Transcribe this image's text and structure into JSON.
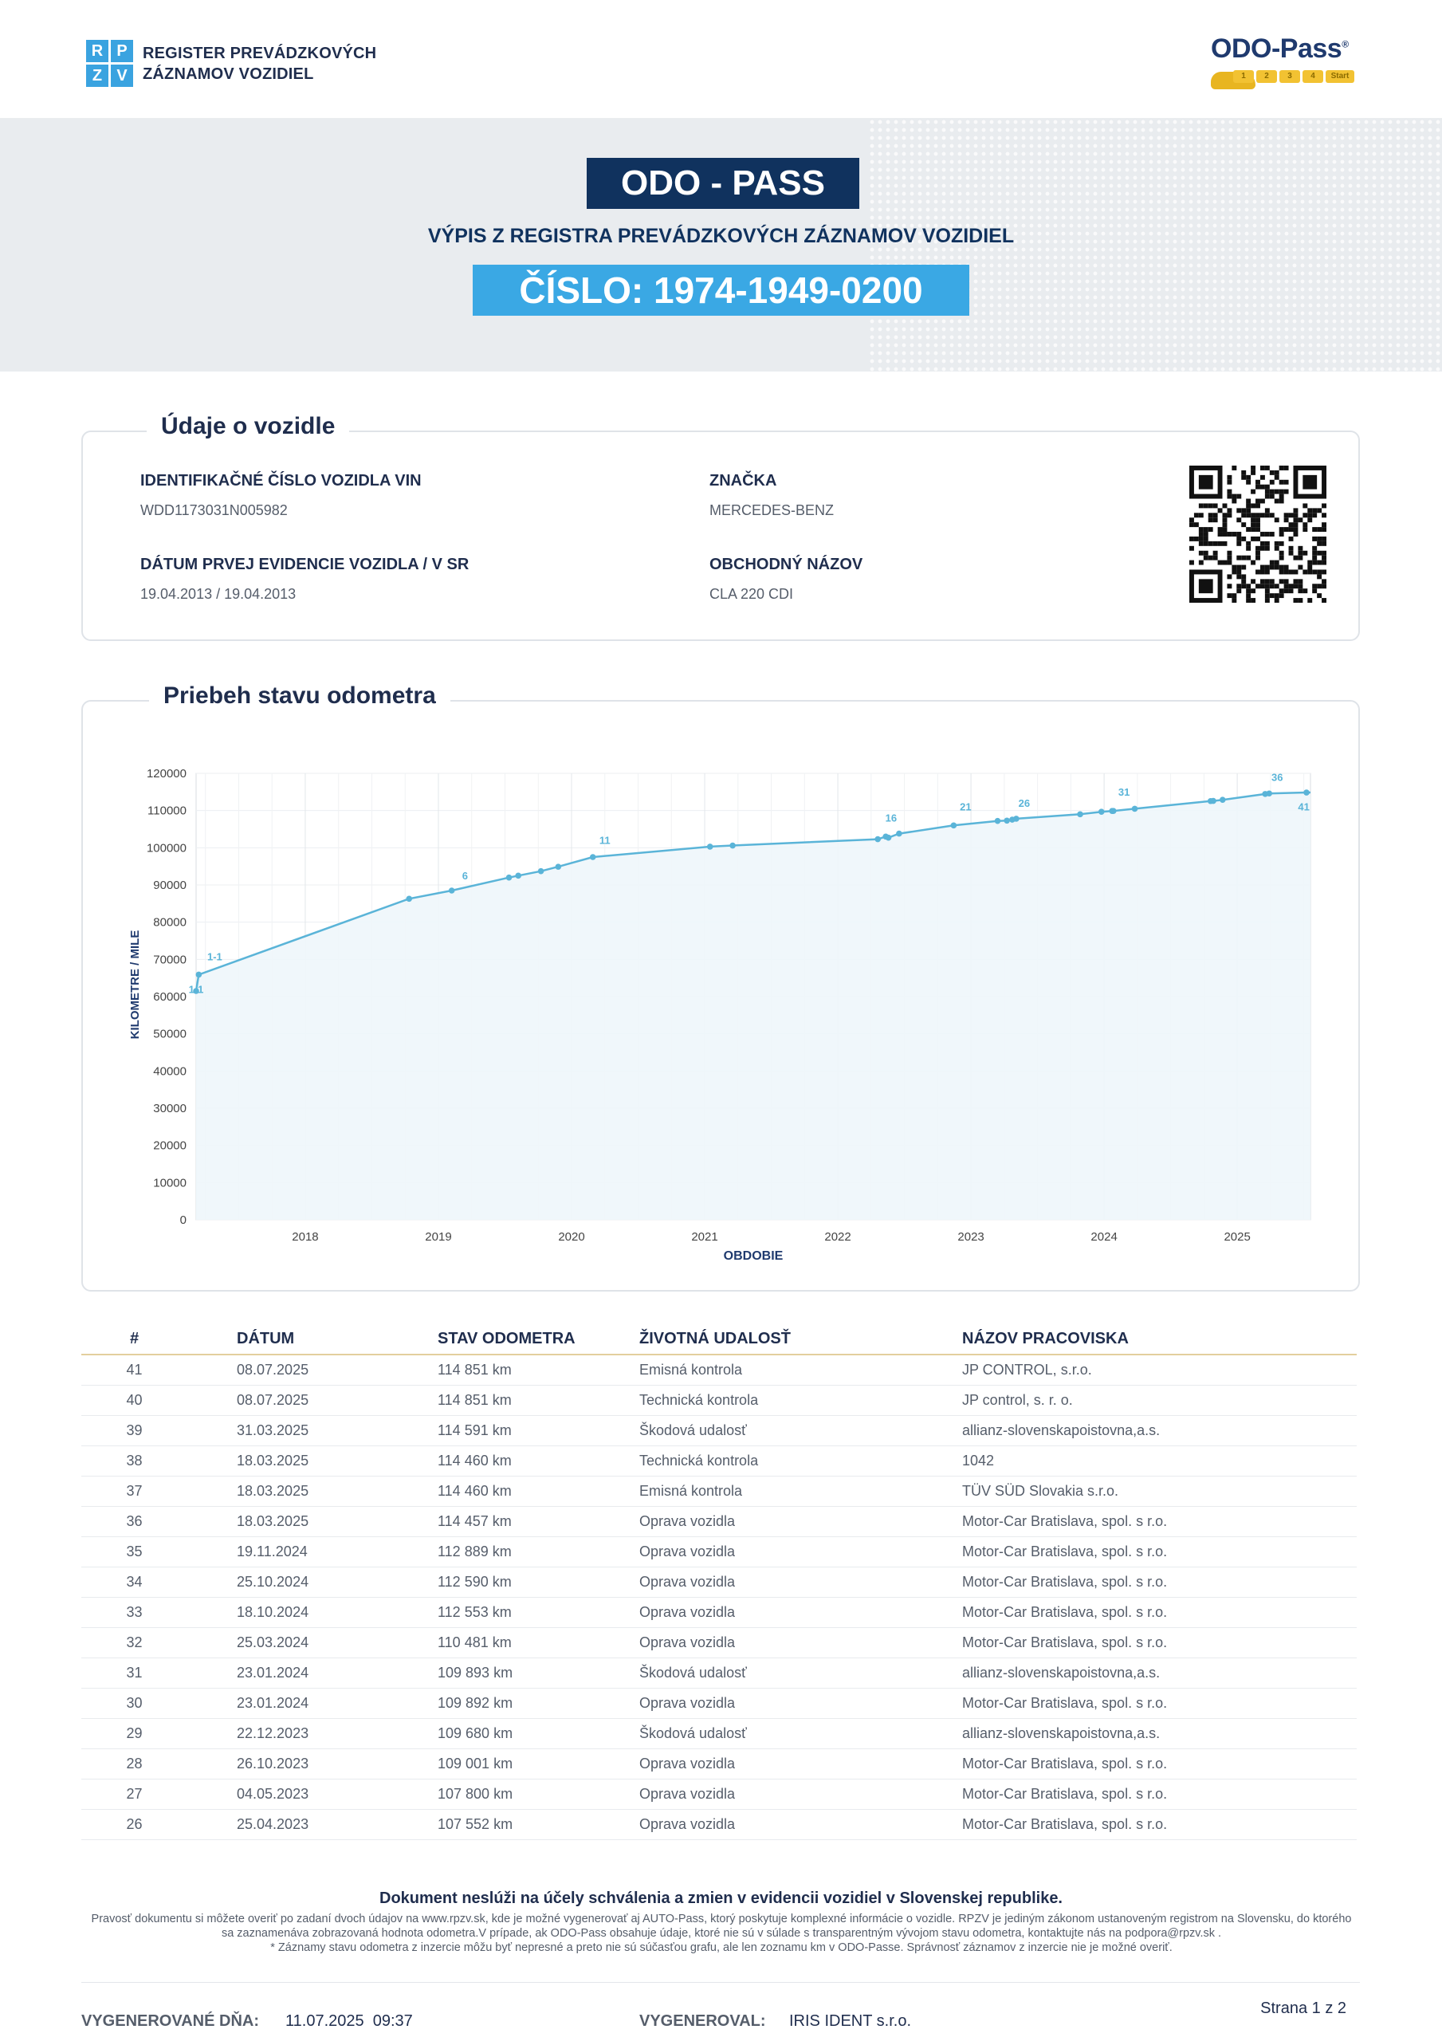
{
  "header": {
    "logo_letters": [
      "R",
      "P",
      "Z",
      "V"
    ],
    "logo_line1": "REGISTER PREVÁDZKOVÝCH",
    "logo_line2": "ZÁZNAMOV VOZIDIEL",
    "brand_name": "ODO-Pass",
    "brand_mark": "®",
    "brand_steps": [
      "1",
      "2",
      "3",
      "4",
      "Start"
    ]
  },
  "banner": {
    "title": "ODO - PASS",
    "subtitle": "VÝPIS Z REGISTRA PREVÁDZKOVÝCH ZÁZNAMOV VOZIDIEL",
    "number": "ČÍSLO: 1974-1949-0200"
  },
  "vehicle": {
    "section_title": "Údaje o vozidle",
    "vin_label": "IDENTIFIKAČNÉ ČÍSLO VOZIDLA VIN",
    "vin_value": "WDD1173031N005982",
    "brand_label": "ZNAČKA",
    "brand_value": "MERCEDES-BENZ",
    "reg_label": "DÁTUM PRVEJ EVIDENCIE VOZIDLA / V SR",
    "reg_value": "19.04.2013 / 19.04.2013",
    "model_label": "OBCHODNÝ NÁZOV",
    "model_value": "CLA 220 CDI"
  },
  "chart_section_title": "Priebeh stavu odometra",
  "chart_data": {
    "type": "area",
    "title": "",
    "xlabel": "OBDOBIE",
    "ylabel": "KILOMETRE / MILE",
    "ylim": [
      0,
      120000
    ],
    "xlim": [
      2017.18,
      2025.55
    ],
    "yticks": [
      0,
      10000,
      20000,
      30000,
      40000,
      50000,
      60000,
      70000,
      80000,
      90000,
      100000,
      110000,
      120000
    ],
    "xticks": [
      2018,
      2019,
      2020,
      2021,
      2022,
      2023,
      2024,
      2025
    ],
    "grid": true,
    "color": "#5ab4d8",
    "points": [
      [
        2017.18,
        61500
      ],
      [
        2017.2,
        65900
      ],
      [
        2018.78,
        86300
      ],
      [
        2019.1,
        88500
      ],
      [
        2019.53,
        92000
      ],
      [
        2019.6,
        92500
      ],
      [
        2019.77,
        93700
      ],
      [
        2019.9,
        94900
      ],
      [
        2020.16,
        97500
      ],
      [
        2021.04,
        100300
      ],
      [
        2021.21,
        100600
      ],
      [
        2022.3,
        102300
      ],
      [
        2022.36,
        103000
      ],
      [
        2022.38,
        102700
      ],
      [
        2022.46,
        103800
      ],
      [
        2022.87,
        106000
      ],
      [
        2023.2,
        107200
      ],
      [
        2023.27,
        107300
      ],
      [
        2023.31,
        107552
      ],
      [
        2023.34,
        107800
      ],
      [
        2023.82,
        109001
      ],
      [
        2023.98,
        109680
      ],
      [
        2024.06,
        109892
      ],
      [
        2024.07,
        109893
      ],
      [
        2024.23,
        110481
      ],
      [
        2024.8,
        112553
      ],
      [
        2024.82,
        112590
      ],
      [
        2024.89,
        112889
      ],
      [
        2025.21,
        114457
      ],
      [
        2025.24,
        114591
      ],
      [
        2025.52,
        114851
      ]
    ],
    "annotations": [
      {
        "label": "1-1",
        "x": 2017.32,
        "y": 69800
      },
      {
        "label": "1-1",
        "x": 2017.18,
        "y": 61000
      },
      {
        "label": "6",
        "x": 2019.2,
        "y": 91500
      },
      {
        "label": "11",
        "x": 2020.25,
        "y": 101000
      },
      {
        "label": "16",
        "x": 2022.4,
        "y": 107000
      },
      {
        "label": "21",
        "x": 2022.96,
        "y": 110000
      },
      {
        "label": "26",
        "x": 2023.4,
        "y": 111000
      },
      {
        "label": "31",
        "x": 2024.15,
        "y": 114000
      },
      {
        "label": "36",
        "x": 2025.3,
        "y": 118000
      },
      {
        "label": "41",
        "x": 2025.5,
        "y": 110000
      }
    ]
  },
  "table": {
    "headers": [
      "#",
      "DÁTUM",
      "STAV ODOMETRA",
      "ŽIVOTNÁ UDALOSŤ",
      "NÁZOV PRACOVISKA"
    ],
    "rows": [
      [
        "41",
        "08.07.2025",
        "114 851 km",
        "Emisná kontrola",
        "JP CONTROL, s.r.o."
      ],
      [
        "40",
        "08.07.2025",
        "114 851 km",
        "Technická kontrola",
        "JP control, s. r. o."
      ],
      [
        "39",
        "31.03.2025",
        "114 591 km",
        "Škodová udalosť",
        "allianz-slovenskapoistovna,a.s."
      ],
      [
        "38",
        "18.03.2025",
        "114 460 km",
        "Technická kontrola",
        "1042"
      ],
      [
        "37",
        "18.03.2025",
        "114 460 km",
        "Emisná kontrola",
        "TÜV SÜD Slovakia s.r.o."
      ],
      [
        "36",
        "18.03.2025",
        "114 457 km",
        "Oprava vozidla",
        "Motor-Car Bratislava, spol. s r.o."
      ],
      [
        "35",
        "19.11.2024",
        "112 889 km",
        "Oprava vozidla",
        "Motor-Car Bratislava, spol. s r.o."
      ],
      [
        "34",
        "25.10.2024",
        "112 590 km",
        "Oprava vozidla",
        "Motor-Car Bratislava, spol. s r.o."
      ],
      [
        "33",
        "18.10.2024",
        "112 553 km",
        "Oprava vozidla",
        "Motor-Car Bratislava, spol. s r.o."
      ],
      [
        "32",
        "25.03.2024",
        "110 481 km",
        "Oprava vozidla",
        "Motor-Car Bratislava, spol. s r.o."
      ],
      [
        "31",
        "23.01.2024",
        "109 893 km",
        "Škodová udalosť",
        "allianz-slovenskapoistovna,a.s."
      ],
      [
        "30",
        "23.01.2024",
        "109 892 km",
        "Oprava vozidla",
        "Motor-Car Bratislava, spol. s r.o."
      ],
      [
        "29",
        "22.12.2023",
        "109 680 km",
        "Škodová udalosť",
        "allianz-slovenskapoistovna,a.s."
      ],
      [
        "28",
        "26.10.2023",
        "109 001 km",
        "Oprava vozidla",
        "Motor-Car Bratislava, spol. s r.o."
      ],
      [
        "27",
        "04.05.2023",
        "107 800 km",
        "Oprava vozidla",
        "Motor-Car Bratislava, spol. s r.o."
      ],
      [
        "26",
        "25.04.2023",
        "107 552 km",
        "Oprava vozidla",
        "Motor-Car Bratislava, spol. s r.o."
      ]
    ]
  },
  "footer": {
    "notice_title": "Dokument neslúži na účely schválenia a zmien v evidencii vozidiel v Slovenskej republike.",
    "notice_text": "Pravosť dokumentu si môžete overiť po zadaní dvoch údajov na www.rpzv.sk, kde je možné vygenerovať aj AUTO-Pass, ktorý poskytuje komplexné informácie o vozidle. RPZV je jediným zákonom ustanoveným registrom na Slovensku, do ktorého sa zaznamenáva zobrazovaná hodnota odometra.V prípade, ak ODO-Pass obsahuje údaje, ktoré nie sú v súlade s transparentným vývojom stavu odometra, kontaktujte nás na podpora@rpzv.sk .",
    "notice_note": "* Záznamy stavu odometra z inzercie môžu byť nepresné a preto nie sú súčasťou grafu, ale len zoznamu km v ODO-Passe. Správnosť záznamov z inzercie nie je možné overiť.",
    "generated_label": "VYGENEROVANÉ DŇA:",
    "generated_value": "11.07.2025  09:37",
    "generated_by_label": "VYGENEROVAL:",
    "generated_by_value": "IRIS IDENT s.r.o.",
    "page": "Strana 1 z 2"
  }
}
